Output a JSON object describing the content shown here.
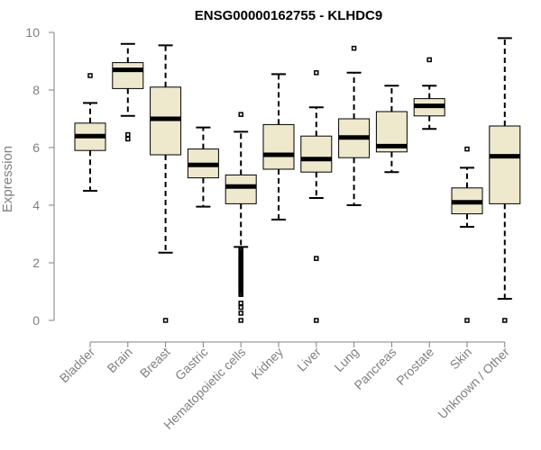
{
  "chart_data": {
    "type": "boxplot",
    "title": "ENSG00000162755 - KLHDC9",
    "xlabel": "",
    "ylabel": "Expression",
    "ylim": [
      0,
      10
    ],
    "yticks": [
      0,
      2,
      4,
      6,
      8,
      10
    ],
    "box_fill": "#EEE8CD",
    "categories": [
      "Bladder",
      "Brain",
      "Breast",
      "Gastric",
      "Hematopoietic cells",
      "Kidney",
      "Liver",
      "Lung",
      "Pancreas",
      "Prostate",
      "Skin",
      "Unknown / Other"
    ],
    "boxes": [
      {
        "name": "Bladder",
        "whisker_low": 4.5,
        "q1": 5.9,
        "median": 6.4,
        "q3": 6.85,
        "whisker_high": 7.55,
        "outliers": [
          8.5
        ]
      },
      {
        "name": "Brain",
        "whisker_low": 7.1,
        "q1": 8.05,
        "median": 8.7,
        "q3": 8.95,
        "whisker_high": 9.6,
        "outliers": [
          6.3,
          6.45
        ]
      },
      {
        "name": "Breast",
        "whisker_low": 2.35,
        "q1": 5.75,
        "median": 7.0,
        "q3": 8.1,
        "whisker_high": 9.55,
        "outliers": [
          0.0
        ]
      },
      {
        "name": "Gastric",
        "whisker_low": 3.95,
        "q1": 4.95,
        "median": 5.4,
        "q3": 5.95,
        "whisker_high": 6.7,
        "outliers": []
      },
      {
        "name": "Hematopoietic cells",
        "whisker_low": 2.55,
        "q1": 4.05,
        "median": 4.65,
        "q3": 5.05,
        "whisker_high": 6.55,
        "outliers": [
          7.15,
          2.45,
          2.4,
          2.35,
          2.3,
          2.25,
          2.2,
          2.15,
          2.1,
          2.05,
          2.0,
          1.95,
          1.9,
          1.85,
          1.8,
          1.75,
          1.7,
          1.65,
          1.6,
          1.55,
          1.5,
          1.45,
          1.4,
          1.35,
          1.3,
          1.25,
          1.2,
          1.15,
          1.1,
          1.05,
          1.0,
          0.95,
          0.9,
          0.6,
          0.45,
          0.25,
          0.0
        ]
      },
      {
        "name": "Kidney",
        "whisker_low": 3.5,
        "q1": 5.25,
        "median": 5.75,
        "q3": 6.8,
        "whisker_high": 8.55,
        "outliers": []
      },
      {
        "name": "Liver",
        "whisker_low": 4.25,
        "q1": 5.15,
        "median": 5.6,
        "q3": 6.4,
        "whisker_high": 7.4,
        "outliers": [
          8.6,
          2.15,
          0.0
        ]
      },
      {
        "name": "Lung",
        "whisker_low": 4.0,
        "q1": 5.65,
        "median": 6.35,
        "q3": 7.0,
        "whisker_high": 8.6,
        "outliers": [
          9.45
        ]
      },
      {
        "name": "Pancreas",
        "whisker_low": 5.15,
        "q1": 5.85,
        "median": 6.05,
        "q3": 7.25,
        "whisker_high": 8.15,
        "outliers": []
      },
      {
        "name": "Prostate",
        "whisker_low": 6.65,
        "q1": 7.1,
        "median": 7.45,
        "q3": 7.7,
        "whisker_high": 8.15,
        "outliers": [
          9.05
        ]
      },
      {
        "name": "Skin",
        "whisker_low": 3.25,
        "q1": 3.7,
        "median": 4.1,
        "q3": 4.6,
        "whisker_high": 5.3,
        "outliers": [
          5.95,
          0.0
        ]
      },
      {
        "name": "Unknown / Other",
        "whisker_low": 0.75,
        "q1": 4.05,
        "median": 5.7,
        "q3": 6.75,
        "whisker_high": 9.8,
        "outliers": [
          0.0
        ]
      }
    ]
  }
}
